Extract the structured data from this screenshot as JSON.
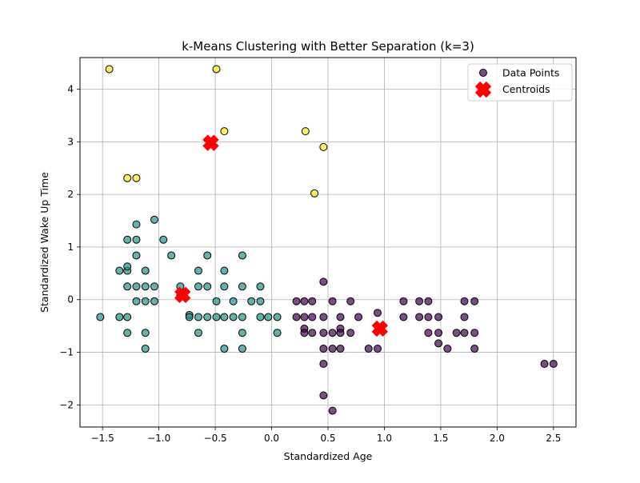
{
  "chart_data": {
    "type": "scatter",
    "title": "k-Means Clustering with Better Separation (k=3)",
    "xlabel": "Standardized Age",
    "ylabel": "Standardized Wake Up Time",
    "xlim": [
      -1.7,
      2.7
    ],
    "ylim": [
      -2.42,
      4.6
    ],
    "xticks": [
      -1.5,
      -1.0,
      -0.5,
      0.0,
      0.5,
      1.0,
      1.5,
      2.0,
      2.5
    ],
    "xtick_labels": [
      "−1.5",
      "−1.0",
      "−0.5",
      "0.0",
      "0.5",
      "1.0",
      "1.5",
      "2.0",
      "2.5"
    ],
    "yticks": [
      -2,
      -1,
      0,
      1,
      2,
      3,
      4
    ],
    "ytick_labels": [
      "−2",
      "−1",
      "0",
      "1",
      "2",
      "3",
      "4"
    ],
    "grid": true,
    "legend_position": "top-right",
    "cluster_colors": [
      "#440154",
      "#21918c",
      "#fde725"
    ],
    "series": [
      {
        "name": "Data Points",
        "marker": "circle",
        "points": [
          [
            0.22,
            -0.03
          ],
          [
            0.29,
            -0.03
          ],
          [
            0.36,
            -0.03
          ],
          [
            0.46,
            0.34
          ],
          [
            0.54,
            -0.03
          ],
          [
            0.7,
            -0.03
          ],
          [
            1.17,
            -0.03
          ],
          [
            1.31,
            -0.03
          ],
          [
            1.39,
            -0.03
          ],
          [
            1.71,
            -0.03
          ],
          [
            1.8,
            -0.03
          ],
          [
            0.22,
            -0.33
          ],
          [
            0.29,
            -0.33
          ],
          [
            0.36,
            -0.33
          ],
          [
            0.46,
            -0.33
          ],
          [
            0.61,
            -0.33
          ],
          [
            0.77,
            -0.33
          ],
          [
            0.94,
            -0.25
          ],
          [
            1.17,
            -0.33
          ],
          [
            1.31,
            -0.33
          ],
          [
            1.39,
            -0.33
          ],
          [
            1.48,
            -0.33
          ],
          [
            1.71,
            -0.33
          ],
          [
            0.29,
            -0.55
          ],
          [
            0.29,
            -0.63
          ],
          [
            0.36,
            -0.63
          ],
          [
            0.46,
            -0.63
          ],
          [
            0.54,
            -0.63
          ],
          [
            0.61,
            -0.55
          ],
          [
            0.61,
            -0.63
          ],
          [
            0.7,
            -0.63
          ],
          [
            1.39,
            -0.63
          ],
          [
            1.48,
            -0.63
          ],
          [
            1.64,
            -0.63
          ],
          [
            1.71,
            -0.63
          ],
          [
            1.8,
            -0.63
          ],
          [
            0.46,
            -0.93
          ],
          [
            0.54,
            -0.93
          ],
          [
            0.61,
            -0.93
          ],
          [
            0.86,
            -0.93
          ],
          [
            0.94,
            -0.93
          ],
          [
            1.48,
            -0.83
          ],
          [
            1.56,
            -0.93
          ],
          [
            1.8,
            -0.93
          ],
          [
            0.46,
            -1.22
          ],
          [
            0.46,
            -1.82
          ],
          [
            0.54,
            -2.11
          ],
          [
            2.42,
            -1.22
          ],
          [
            2.5,
            -1.22
          ],
          [
            -1.52,
            -0.33
          ],
          [
            -1.35,
            0.55
          ],
          [
            -1.35,
            -0.33
          ],
          [
            -1.28,
            0.55
          ],
          [
            -1.28,
            0.63
          ],
          [
            -1.28,
            1.14
          ],
          [
            -1.28,
            0.25
          ],
          [
            -1.28,
            -0.33
          ],
          [
            -1.28,
            -0.63
          ],
          [
            -1.2,
            1.43
          ],
          [
            -1.2,
            1.14
          ],
          [
            -1.2,
            0.84
          ],
          [
            -1.2,
            0.25
          ],
          [
            -1.2,
            -0.03
          ],
          [
            -1.12,
            0.55
          ],
          [
            -1.12,
            0.25
          ],
          [
            -1.12,
            -0.03
          ],
          [
            -1.12,
            -0.63
          ],
          [
            -1.12,
            -0.93
          ],
          [
            -1.04,
            1.52
          ],
          [
            -1.04,
            0.25
          ],
          [
            -1.04,
            -0.03
          ],
          [
            -0.96,
            1.14
          ],
          [
            -0.89,
            0.84
          ],
          [
            -0.81,
            0.25
          ],
          [
            -0.81,
            0.08
          ],
          [
            -0.73,
            -0.29
          ],
          [
            -0.73,
            -0.33
          ],
          [
            -0.65,
            0.55
          ],
          [
            -0.65,
            0.25
          ],
          [
            -0.65,
            -0.33
          ],
          [
            -0.65,
            -0.63
          ],
          [
            -0.57,
            0.84
          ],
          [
            -0.57,
            0.25
          ],
          [
            -0.57,
            -0.33
          ],
          [
            -0.49,
            -0.03
          ],
          [
            -0.49,
            -0.33
          ],
          [
            -0.42,
            0.55
          ],
          [
            -0.42,
            0.25
          ],
          [
            -0.42,
            -0.33
          ],
          [
            -0.42,
            -0.93
          ],
          [
            -0.34,
            -0.03
          ],
          [
            -0.34,
            -0.33
          ],
          [
            -0.26,
            0.84
          ],
          [
            -0.26,
            0.25
          ],
          [
            -0.26,
            -0.33
          ],
          [
            -0.26,
            -0.63
          ],
          [
            -0.26,
            -0.93
          ],
          [
            -0.18,
            -0.03
          ],
          [
            -0.1,
            0.25
          ],
          [
            -0.1,
            -0.03
          ],
          [
            -0.1,
            -0.33
          ],
          [
            -0.03,
            -0.33
          ],
          [
            0.05,
            -0.33
          ],
          [
            0.05,
            -0.63
          ],
          [
            -1.44,
            4.38
          ],
          [
            -0.49,
            4.38
          ],
          [
            -1.28,
            2.31
          ],
          [
            -1.2,
            2.31
          ],
          [
            -0.42,
            3.2
          ],
          [
            0.3,
            3.2
          ],
          [
            0.38,
            2.02
          ],
          [
            0.46,
            2.9
          ]
        ],
        "clusters": [
          0,
          0,
          0,
          0,
          0,
          0,
          0,
          0,
          0,
          0,
          0,
          0,
          0,
          0,
          0,
          0,
          0,
          0,
          0,
          0,
          0,
          0,
          0,
          0,
          0,
          0,
          0,
          0,
          0,
          0,
          0,
          0,
          0,
          0,
          0,
          0,
          0,
          0,
          0,
          0,
          0,
          0,
          0,
          0,
          0,
          0,
          0,
          0,
          0,
          1,
          1,
          1,
          1,
          1,
          1,
          1,
          1,
          1,
          1,
          1,
          1,
          1,
          1,
          1,
          1,
          1,
          1,
          1,
          1,
          1,
          1,
          1,
          1,
          1,
          1,
          1,
          1,
          1,
          1,
          1,
          1,
          1,
          1,
          1,
          1,
          1,
          1,
          1,
          1,
          1,
          1,
          1,
          1,
          1,
          1,
          1,
          1,
          1,
          1,
          1,
          1,
          1,
          1,
          1,
          2,
          2,
          2,
          2,
          2,
          2,
          2,
          2
        ]
      },
      {
        "name": "Centroids",
        "marker": "x",
        "color": "#ff0000",
        "points": [
          [
            -0.54,
            2.98
          ],
          [
            -0.79,
            0.09
          ],
          [
            0.96,
            -0.55
          ]
        ]
      }
    ]
  }
}
